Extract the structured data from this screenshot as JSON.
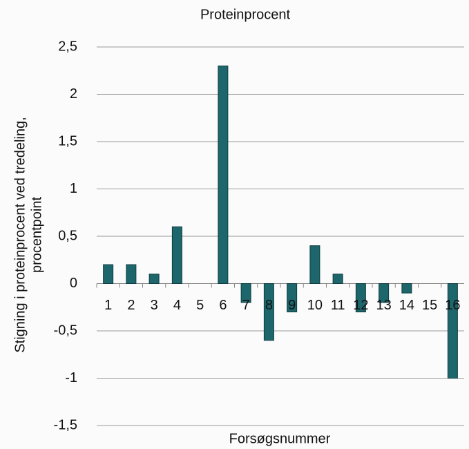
{
  "chart_data": {
    "type": "bar",
    "title": "Proteinprocent",
    "xlabel": "Forsøgsnummer",
    "ylabel": [
      "Stigning i proteinprocent ved tredeling,",
      "procentpoint"
    ],
    "categories": [
      "1",
      "2",
      "3",
      "4",
      "5",
      "6",
      "7",
      "8",
      "9",
      "10",
      "11",
      "12",
      "13",
      "14",
      "15",
      "16"
    ],
    "values": [
      0.2,
      0.2,
      0.1,
      0.6,
      0,
      2.3,
      -0.2,
      -0.6,
      -0.3,
      0.4,
      0.1,
      -0.3,
      -0.2,
      -0.1,
      0,
      -1.0
    ],
    "color": "#1d666b",
    "ylim": [
      -1.5,
      2.5
    ],
    "yticks": [
      {
        "value": -1.5,
        "label": "-1,5"
      },
      -1,
      {
        "value": -0.5,
        "label": "-0,5"
      },
      0,
      {
        "value": 0.5,
        "label": "0,5"
      },
      1,
      {
        "value": 1.5,
        "label": "1,5"
      },
      2,
      {
        "value": 2.5,
        "label": "2,5"
      }
    ],
    "grid": true
  }
}
